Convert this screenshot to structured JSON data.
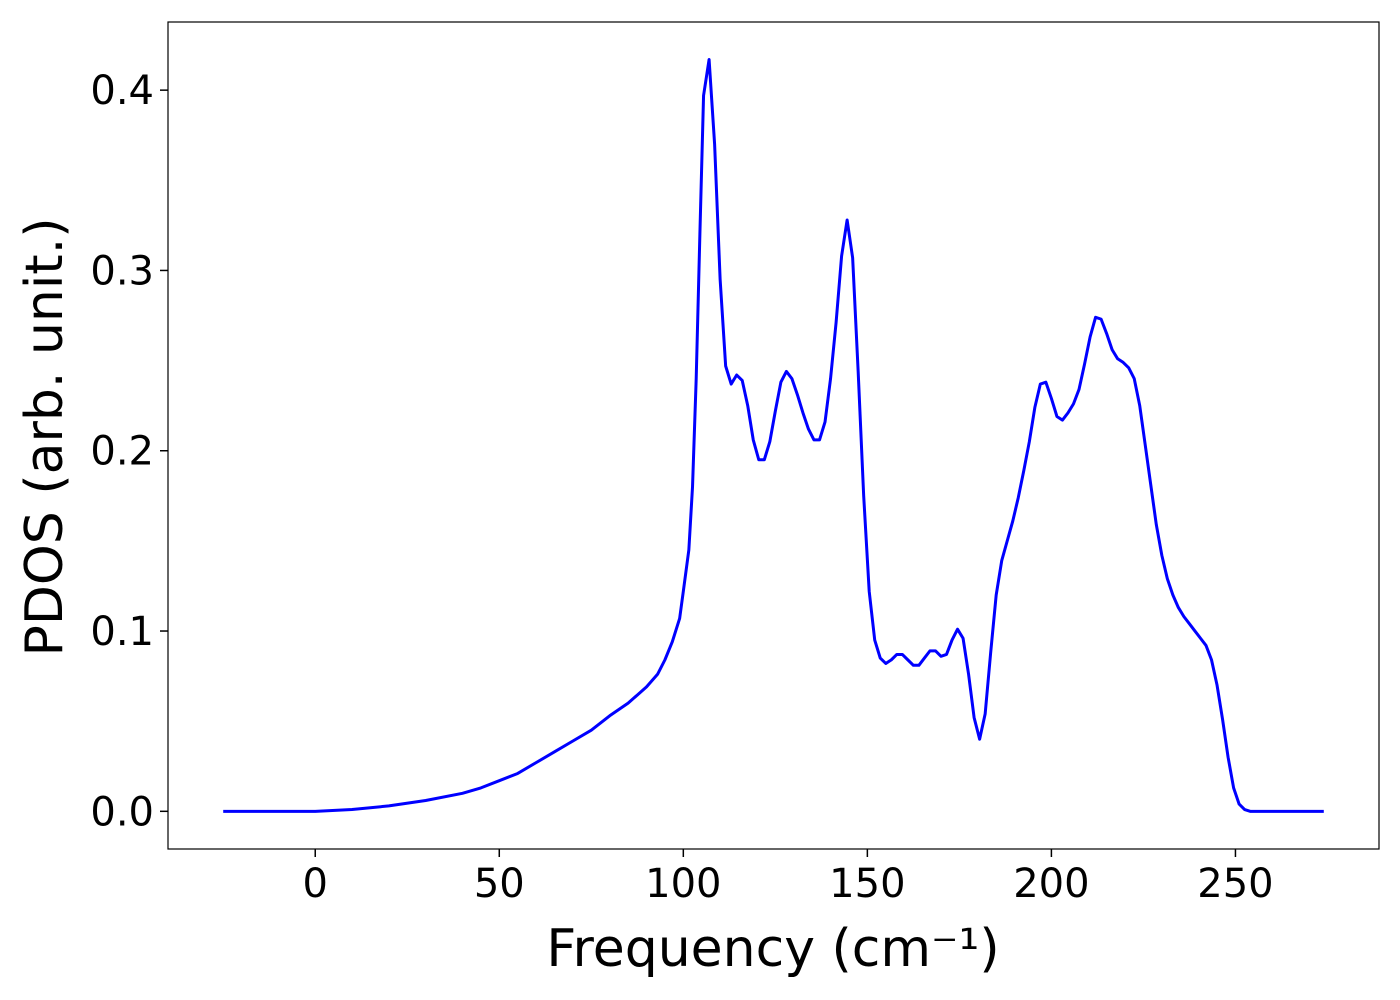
{
  "chart_data": {
    "type": "line",
    "xlabel": "Frequency (cm⁻¹)",
    "ylabel": "PDOS (arb. unit.)",
    "color": "#0000ff",
    "x": [
      -25,
      0,
      10,
      20,
      30,
      40,
      45,
      50,
      55,
      60,
      65,
      70,
      75,
      80,
      85,
      90,
      93,
      95,
      97,
      99,
      100,
      101.5,
      102.5,
      103.5,
      104.5,
      105.5,
      107,
      108.5,
      110,
      111.5,
      113,
      114.5,
      116,
      117.5,
      119,
      120.5,
      122,
      123.5,
      125,
      126.5,
      128,
      129.5,
      131,
      132.5,
      134,
      135.5,
      137,
      138.5,
      140,
      141.5,
      143,
      144.5,
      146,
      147.5,
      149,
      150.5,
      152,
      153.5,
      155,
      156.5,
      158,
      159.5,
      161,
      162.5,
      164,
      165.5,
      167,
      168.5,
      170,
      171.5,
      173,
      174.5,
      176,
      177.5,
      179,
      180.5,
      182,
      183.5,
      185,
      186.5,
      188,
      189.5,
      191,
      192.5,
      194,
      195.5,
      197,
      198.5,
      200,
      201.5,
      203,
      204.5,
      206,
      207.5,
      209,
      210.5,
      212,
      213.5,
      215,
      216.5,
      218,
      219.5,
      221,
      222.5,
      224,
      225.5,
      227,
      228.5,
      230,
      231.5,
      233,
      234.5,
      236,
      237.5,
      239,
      240.5,
      242,
      243.5,
      245,
      246.5,
      248,
      249.5,
      251,
      252.5,
      254,
      274
    ],
    "values": [
      0,
      0,
      0.001,
      0.003,
      0.006,
      0.01,
      0.013,
      0.017,
      0.021,
      0.027,
      0.033,
      0.039,
      0.045,
      0.053,
      0.06,
      0.069,
      0.076,
      0.084,
      0.094,
      0.107,
      0.122,
      0.145,
      0.18,
      0.24,
      0.32,
      0.397,
      0.417,
      0.37,
      0.295,
      0.247,
      0.237,
      0.242,
      0.239,
      0.225,
      0.206,
      0.195,
      0.195,
      0.205,
      0.222,
      0.238,
      0.244,
      0.24,
      0.231,
      0.221,
      0.212,
      0.206,
      0.206,
      0.216,
      0.24,
      0.271,
      0.308,
      0.328,
      0.307,
      0.244,
      0.175,
      0.122,
      0.095,
      0.085,
      0.082,
      0.084,
      0.087,
      0.087,
      0.084,
      0.081,
      0.081,
      0.085,
      0.089,
      0.089,
      0.086,
      0.087,
      0.095,
      0.101,
      0.096,
      0.076,
      0.052,
      0.04,
      0.054,
      0.088,
      0.12,
      0.139,
      0.15,
      0.161,
      0.174,
      0.189,
      0.205,
      0.224,
      0.237,
      0.238,
      0.229,
      0.219,
      0.217,
      0.221,
      0.226,
      0.234,
      0.248,
      0.263,
      0.274,
      0.273,
      0.265,
      0.256,
      0.251,
      0.249,
      0.246,
      0.24,
      0.225,
      0.203,
      0.181,
      0.159,
      0.142,
      0.129,
      0.12,
      0.113,
      0.108,
      0.104,
      0.1,
      0.096,
      0.092,
      0.084,
      0.07,
      0.051,
      0.03,
      0.013,
      0.004,
      0.001,
      0,
      0
    ],
    "xlim": [
      -40,
      289
    ],
    "ylim": [
      -0.0209,
      0.4378
    ],
    "xticks": [
      0,
      50,
      100,
      150,
      200,
      250
    ],
    "yticks": [
      {
        "value": 0,
        "label": "0.0"
      },
      0.1,
      0.2,
      0.3,
      0.4
    ]
  }
}
